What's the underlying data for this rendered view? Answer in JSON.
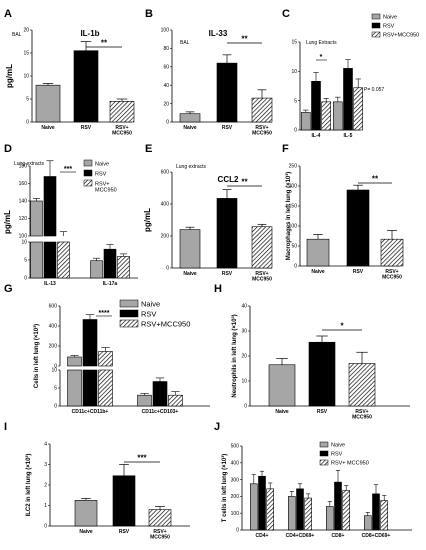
{
  "colors": {
    "naive": "#a6a6a6",
    "rsv": "#000000",
    "mcc": "hatch"
  },
  "chart_data": [
    {
      "id": "A",
      "type": "bar",
      "title": "IL-1b",
      "annotation": "BAL",
      "ylabel": "pg/mL",
      "categories": [
        "Naive",
        "RSV",
        "RSV+\nMCC950"
      ],
      "values": [
        8,
        15.5,
        4.5
      ],
      "errors": [
        0.4,
        2,
        0.5
      ],
      "ylim": [
        0,
        20
      ],
      "yticks": [
        "0",
        "5",
        "10",
        "15",
        "20"
      ],
      "sig": {
        "from": 1,
        "to": 2,
        "label": "**"
      }
    },
    {
      "id": "B",
      "type": "bar",
      "title": "IL-33",
      "annotation": "BAL",
      "ylabel": "",
      "categories": [
        "Naive",
        "RSV",
        "RSV+\nMCC950"
      ],
      "values": [
        9,
        64,
        26
      ],
      "errors": [
        2,
        9,
        9
      ],
      "ylim": [
        0,
        100
      ],
      "yticks": [
        "0",
        "20",
        "40",
        "60",
        "80",
        "100"
      ],
      "sig": {
        "from": 1,
        "to": 2,
        "label": "**"
      }
    },
    {
      "id": "C",
      "type": "bar",
      "title": "",
      "annotation": "Lung Extracts",
      "ylabel": "",
      "categories": [
        "IL-4",
        "IL-5"
      ],
      "series": [
        {
          "name": "Naive",
          "values": [
            3,
            4.8
          ],
          "errors": [
            0.4,
            0.8
          ]
        },
        {
          "name": "RSV",
          "values": [
            8.3,
            10.5
          ],
          "errors": [
            1.5,
            1.5
          ]
        },
        {
          "name": "RSV+MCC950",
          "values": [
            4.8,
            7.2
          ],
          "errors": [
            0.6,
            1.5
          ]
        }
      ],
      "ylim": [
        0,
        15
      ],
      "yticks": [
        "0",
        "5",
        "10",
        "15"
      ],
      "sig": [
        {
          "label": "*"
        },
        {
          "label": "P= 0.057"
        }
      ]
    },
    {
      "id": "D",
      "type": "bar",
      "title": "",
      "annotation": "Lung extracts",
      "ylabel": "pg/mL",
      "categories": [
        "IL-13",
        "IL-17a"
      ],
      "series": [
        {
          "name": "Naive",
          "values": [
            140,
            4.8
          ],
          "errors": [
            3,
            0.7
          ]
        },
        {
          "name": "RSV",
          "values": [
            168,
            8
          ],
          "errors": [
            18,
            1.3
          ]
        },
        {
          "name": "RSV+\nMCC950",
          "values": [
            100,
            6
          ],
          "errors": [
            5,
            0.7
          ]
        }
      ],
      "yticks_top": [
        "100",
        "120",
        "140",
        "160",
        "180"
      ],
      "yticks_bottom": [
        "0",
        "5",
        "10"
      ],
      "sig": {
        "label": "***"
      }
    },
    {
      "id": "E",
      "type": "bar",
      "title": "CCL2",
      "annotation": "Lung extracts",
      "ylabel": "pg/mL",
      "categories": [
        "Naive",
        "RSV",
        "RSV+\nMCC950"
      ],
      "values": [
        240,
        435,
        258
      ],
      "errors": [
        15,
        55,
        15
      ],
      "ylim": [
        0,
        600
      ],
      "yticks": [
        "0",
        "200",
        "400",
        "600"
      ],
      "sig": {
        "from": 1,
        "to": 2,
        "label": "**"
      }
    },
    {
      "id": "F",
      "type": "bar",
      "title": "",
      "annotation": "",
      "ylabel": "Macrophages in left lung (×10³)",
      "categories": [
        "Naive",
        "RSV",
        "RSV+\nMCC950"
      ],
      "values": [
        67,
        190,
        67
      ],
      "errors": [
        12,
        12,
        22
      ],
      "ylim": [
        0,
        250
      ],
      "yticks": [
        "0",
        "50",
        "100",
        "150",
        "200",
        "250"
      ],
      "sig": {
        "from": 1,
        "to": 2,
        "label": "**"
      }
    },
    {
      "id": "G",
      "type": "bar",
      "title": "",
      "annotation": "",
      "ylabel": "Cells in left lung (×10³)",
      "categories": [
        "CD11c+CD11b+",
        "CD11c+CD103+"
      ],
      "series": [
        {
          "name": "Naive",
          "values": [
            90,
            3
          ],
          "errors": [
            15,
            0.5
          ]
        },
        {
          "name": "RSV",
          "values": [
            465,
            6.8
          ],
          "errors": [
            50,
            1
          ]
        },
        {
          "name": "RSV+MCC950",
          "values": [
            145,
            3
          ],
          "errors": [
            40,
            1
          ]
        }
      ],
      "yticks_top": [
        "0",
        "200",
        "400",
        "600"
      ],
      "yticks_bottom": [
        "0",
        "5",
        "10"
      ],
      "sig": {
        "label": "****"
      }
    },
    {
      "id": "H",
      "type": "bar",
      "title": "",
      "annotation": "",
      "ylabel": "Neutrophils in left lung (×10³)",
      "categories": [
        "Naive",
        "RSV",
        "RSV+\nMCC950"
      ],
      "values": [
        16.5,
        25.5,
        17
      ],
      "errors": [
        2.5,
        2.5,
        4.5
      ],
      "ylim": [
        0,
        40
      ],
      "yticks": [
        "0",
        "10",
        "20",
        "30",
        "40"
      ],
      "sig": {
        "from": 1,
        "to": 2,
        "label": "*"
      }
    },
    {
      "id": "I",
      "type": "bar",
      "title": "",
      "annotation": "",
      "ylabel": "ILC2 in left lung (×10³)",
      "categories": [
        "Naive",
        "RSV",
        "RSV+\nMCC950"
      ],
      "values": [
        1.25,
        2.45,
        0.8
      ],
      "errors": [
        0.1,
        0.55,
        0.15
      ],
      "ylim": [
        0,
        4
      ],
      "yticks": [
        "0",
        "1",
        "2",
        "3",
        "4"
      ],
      "sig": {
        "from": 1,
        "to": 2,
        "label": "***"
      }
    },
    {
      "id": "J",
      "type": "bar",
      "title": "",
      "annotation": "",
      "ylabel": "T cells in left lung (×10³)",
      "categories": [
        "CD4+",
        "CD4+CD69+",
        "CD8+",
        "CD8+CD69+"
      ],
      "series": [
        {
          "name": "Naive",
          "values": [
            275,
            200,
            140,
            85
          ],
          "errors": [
            55,
            30,
            30,
            20
          ]
        },
        {
          "name": "RSV",
          "values": [
            320,
            245,
            285,
            215
          ],
          "errors": [
            30,
            30,
            70,
            55
          ]
        },
        {
          "name": "RSV+ MCC950",
          "values": [
            245,
            190,
            235,
            175
          ],
          "errors": [
            35,
            25,
            30,
            30
          ]
        }
      ],
      "ylim": [
        0,
        500
      ],
      "yticks": [
        "0",
        "100",
        "200",
        "300",
        "400",
        "500"
      ]
    }
  ]
}
